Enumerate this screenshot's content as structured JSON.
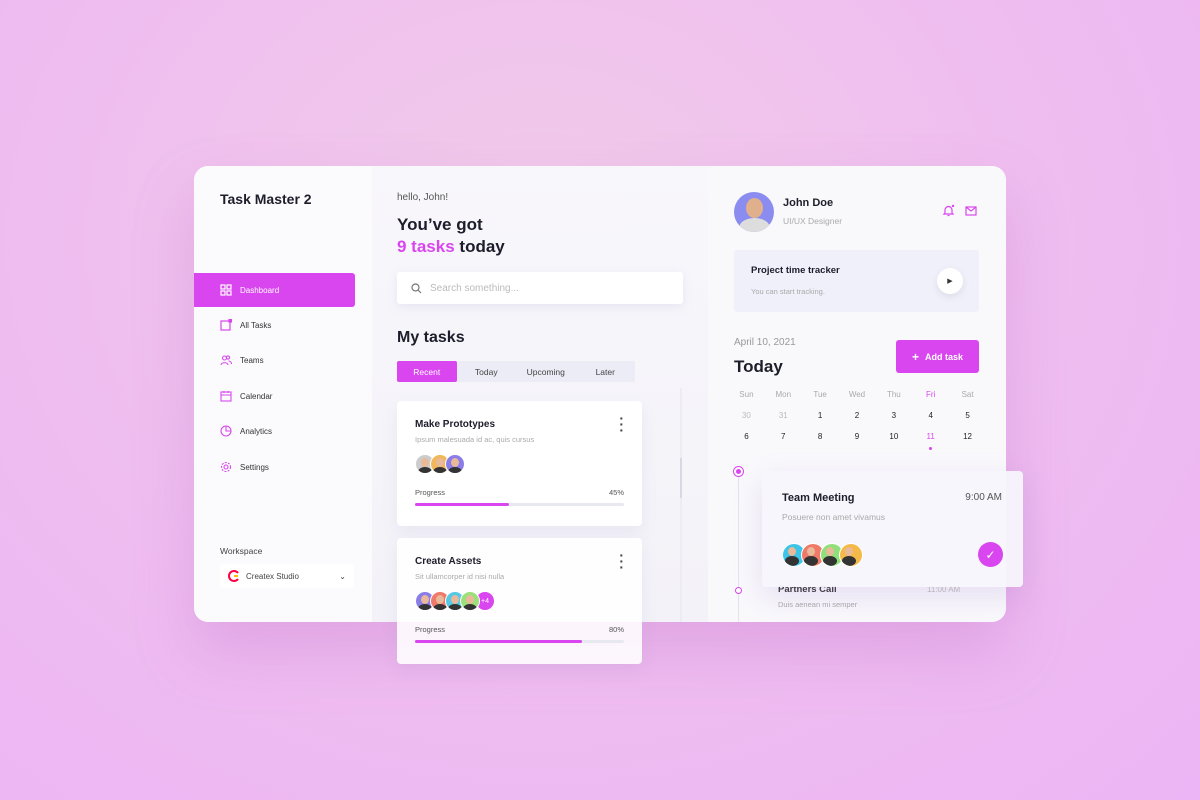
{
  "app": {
    "title": "Task Master 2"
  },
  "sidebar": {
    "items": [
      {
        "label": "Dashboard",
        "icon": "grid-icon",
        "active": true
      },
      {
        "label": "All Tasks",
        "icon": "task-icon"
      },
      {
        "label": "Teams",
        "icon": "users-icon"
      },
      {
        "label": "Calendar",
        "icon": "calendar-icon"
      },
      {
        "label": "Analytics",
        "icon": "pie-chart-icon"
      },
      {
        "label": "Settings",
        "icon": "gear-icon"
      }
    ],
    "workspace_label": "Workspace",
    "workspace_value": "Createx Studio"
  },
  "main": {
    "greeting": "hello, John!",
    "headline_1": "You’ve got",
    "headline_count": "9 tasks",
    "headline_2": "today",
    "search_placeholder": "Search something...",
    "section_title": "My tasks",
    "tabs": [
      "Recent",
      "Today",
      "Upcoming",
      "Later"
    ],
    "active_tab": "Recent",
    "tasks": [
      {
        "title": "Make Prototypes",
        "subtitle": "Ipsum malesuada id ac, quis cursus",
        "progress_label": "Progress",
        "progress": "45%",
        "progress_value": 45,
        "avatars": 3
      },
      {
        "title": "Create Assets",
        "subtitle": "Sit ullamcorper id nisi nulla",
        "progress_label": "Progress",
        "progress": "80%",
        "progress_value": 80,
        "avatars": 4,
        "more": "+4"
      }
    ]
  },
  "profile": {
    "name": "John Doe",
    "role": "UI/UX Designer"
  },
  "tracker": {
    "title": "Project time tracker",
    "subtitle": "You can start tracking."
  },
  "calendar": {
    "date": "April 10, 2021",
    "title": "Today",
    "add_label": "Add task",
    "days": [
      "Sun",
      "Mon",
      "Tue",
      "Wed",
      "Thu",
      "Fri",
      "Sat"
    ],
    "week1": [
      "30",
      "31",
      "1",
      "2",
      "3",
      "4",
      "5"
    ],
    "week2": [
      "6",
      "7",
      "8",
      "9",
      "10",
      "11",
      "12"
    ],
    "selected_day": "11"
  },
  "events": [
    {
      "title": "Team Meeting",
      "subtitle": "Posuere non amet vivamus",
      "time": "9:00 AM",
      "done": true
    },
    {
      "title": "Partners Call",
      "subtitle": "Duis aenean mi semper",
      "time": "11:00 AM"
    }
  ],
  "colors": {
    "accent": "#d946ef"
  }
}
